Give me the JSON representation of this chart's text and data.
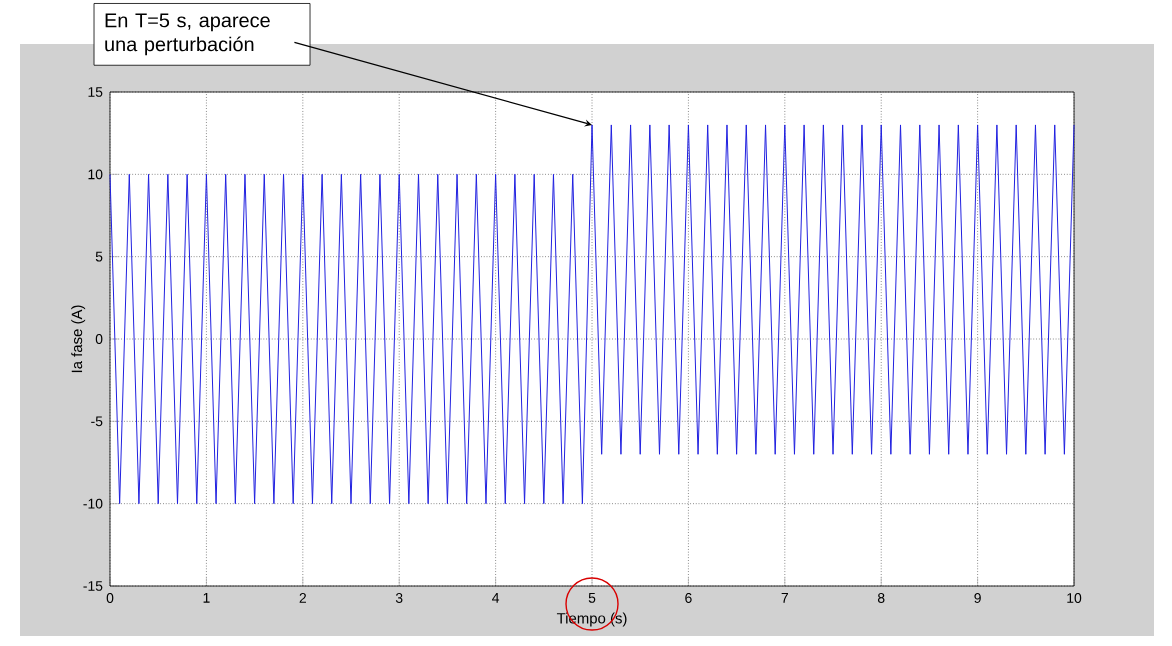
{
  "chart_data": {
    "type": "line",
    "xlabel": "Tiempo (s)",
    "ylabel": "Ia fase (A)",
    "x": [
      0,
      0.1,
      0.2,
      0.3,
      0.4,
      0.5,
      0.6,
      0.7,
      0.8,
      0.9,
      1,
      1.1,
      1.2,
      1.3,
      1.4,
      1.5,
      1.6,
      1.7,
      1.8,
      1.9,
      2,
      2.1,
      2.2,
      2.3,
      2.4,
      2.5,
      2.6,
      2.7,
      2.8,
      2.9,
      3,
      3.1,
      3.2,
      3.3,
      3.4,
      3.5,
      3.6,
      3.7,
      3.8,
      3.9,
      4,
      4.1,
      4.2,
      4.3,
      4.4,
      4.5,
      4.6,
      4.7,
      4.8,
      4.9,
      5,
      5.1,
      5.2,
      5.3,
      5.4,
      5.5,
      5.6,
      5.7,
      5.8,
      5.9,
      6,
      6.1,
      6.2,
      6.3,
      6.4,
      6.5,
      6.6,
      6.7,
      6.8,
      6.9,
      7,
      7.1,
      7.2,
      7.3,
      7.4,
      7.5,
      7.6,
      7.7,
      7.8,
      7.9,
      8,
      8.1,
      8.2,
      8.3,
      8.4,
      8.5,
      8.6,
      8.7,
      8.8,
      8.9,
      9,
      9.1,
      9.2,
      9.3,
      9.4,
      9.5,
      9.6,
      9.7,
      9.8,
      9.9,
      10
    ],
    "series": [
      {
        "color": "#2020e0",
        "values": [
          10,
          -10,
          10,
          -10,
          10,
          -10,
          10,
          -10,
          10,
          -10,
          10,
          -10,
          10,
          -10,
          10,
          -10,
          10,
          -10,
          10,
          -10,
          10,
          -10,
          10,
          -10,
          10,
          -10,
          10,
          -10,
          10,
          -10,
          10,
          -10,
          10,
          -10,
          10,
          -10,
          10,
          -10,
          10,
          -10,
          10,
          -10,
          10,
          -10,
          10,
          -10,
          10,
          -10,
          10,
          -10,
          13,
          -7,
          13,
          -7,
          13,
          -7,
          13,
          -7,
          13,
          -7,
          13,
          -7,
          13,
          -7,
          13,
          -7,
          13,
          -7,
          13,
          -7,
          13,
          -7,
          13,
          -7,
          13,
          -7,
          13,
          -7,
          13,
          -7,
          13,
          -7,
          13,
          -7,
          13,
          -7,
          13,
          -7,
          13,
          -7,
          13,
          -7,
          13,
          -7,
          13,
          -7,
          13,
          -7,
          13,
          -7,
          13
        ]
      }
    ],
    "xlim": [
      0,
      10
    ],
    "ylim": [
      -15,
      15
    ],
    "xticks": [
      0,
      1,
      2,
      3,
      4,
      5,
      6,
      7,
      8,
      9,
      10
    ],
    "yticks": [
      -15,
      -10,
      -5,
      0,
      5,
      10,
      15
    ],
    "grid": true,
    "annotations": [
      {
        "text": "En T=5 s, aparece una perturbación",
        "x": 5,
        "y": 13
      }
    ]
  }
}
